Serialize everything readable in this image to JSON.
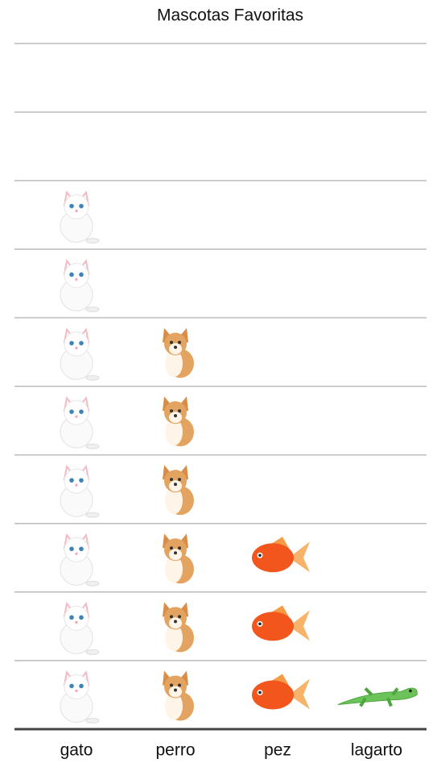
{
  "chart_data": {
    "type": "pictograph",
    "title": "Mascotas Favoritas",
    "categories": [
      "gato",
      "perro",
      "pez",
      "lagarto"
    ],
    "values": [
      8,
      6,
      3,
      1
    ],
    "ylim": [
      0,
      10
    ],
    "yticks": [
      0,
      1,
      2,
      3,
      4,
      5,
      6,
      7,
      8,
      9,
      10
    ],
    "grid": true
  }
}
